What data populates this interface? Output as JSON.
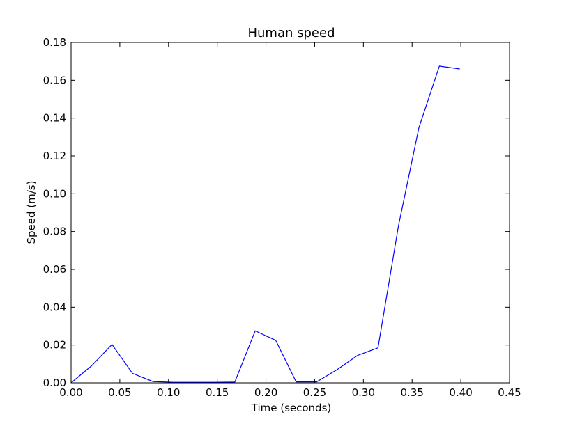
{
  "chart_data": {
    "type": "line",
    "title": "Human speed",
    "xlabel": "Time (seconds)",
    "ylabel": "Speed (m/s)",
    "xlim": [
      0.0,
      0.45
    ],
    "ylim": [
      0.0,
      0.18
    ],
    "xticks": [
      0.0,
      0.05,
      0.1,
      0.15,
      0.2,
      0.25,
      0.3,
      0.35,
      0.4,
      0.45
    ],
    "xtick_labels": [
      "0.00",
      "0.05",
      "0.10",
      "0.15",
      "0.20",
      "0.25",
      "0.30",
      "0.35",
      "0.40",
      "0.45"
    ],
    "yticks": [
      0.0,
      0.02,
      0.04,
      0.06,
      0.08,
      0.1,
      0.12,
      0.14,
      0.16,
      0.18
    ],
    "ytick_labels": [
      "0.00",
      "0.02",
      "0.04",
      "0.06",
      "0.08",
      "0.10",
      "0.12",
      "0.14",
      "0.16",
      "0.18"
    ],
    "grid": false,
    "series": [
      {
        "color": "#0000ff",
        "x": [
          0.0,
          0.021,
          0.042,
          0.063,
          0.084,
          0.105,
          0.126,
          0.147,
          0.168,
          0.189,
          0.21,
          0.231,
          0.252,
          0.273,
          0.294,
          0.315,
          0.336,
          0.357,
          0.378,
          0.399
        ],
        "y": [
          0.0,
          0.009,
          0.0203,
          0.005,
          0.0007,
          0.0003,
          0.0003,
          0.0003,
          0.0004,
          0.0275,
          0.0225,
          0.0005,
          0.0005,
          0.007,
          0.0145,
          0.0185,
          0.083,
          0.135,
          0.1675,
          0.166
        ]
      }
    ]
  }
}
